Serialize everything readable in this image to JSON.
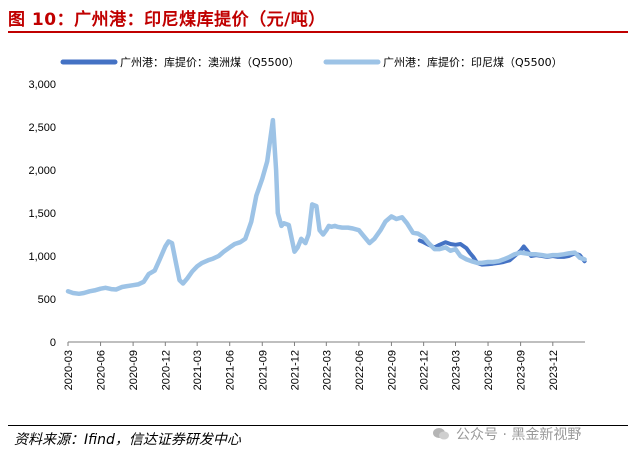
{
  "figure_title": "图 10：广州港：印尼煤库提价（元/吨）",
  "source": "资料来源：Ifind，信达证券研发中心",
  "watermark": "公众号 · 黑金新视野",
  "colors": {
    "title": "#c00000",
    "australia": "#4472c4",
    "indonesia": "#9dc3e6"
  },
  "chart_data": {
    "type": "line",
    "title": "",
    "xlabel": "",
    "ylabel": "",
    "ylim": [
      0,
      3000
    ],
    "yticks": [
      0,
      500,
      1000,
      1500,
      2000,
      2500,
      3000
    ],
    "ytick_labels": [
      "0",
      "500",
      "1,000",
      "1,500",
      "2,000",
      "2,500",
      "3,000"
    ],
    "xlim": [
      "2020-03",
      "2024-03"
    ],
    "xticks": [
      "2020-03",
      "2020-06",
      "2020-09",
      "2020-12",
      "2021-03",
      "2021-06",
      "2021-09",
      "2021-12",
      "2022-03",
      "2022-06",
      "2022-09",
      "2022-12",
      "2023-03",
      "2023-06",
      "2023-09",
      "2023-12"
    ],
    "grid": false,
    "legend_position": "top",
    "series": [
      {
        "name": "广州港：库提价：澳洲煤（Q5500）",
        "color": "#4472c4",
        "x": [
          "2022-11-20",
          "2022-12-01",
          "2022-12-15",
          "2023-01-01",
          "2023-01-15",
          "2023-02-01",
          "2023-02-15",
          "2023-03-01",
          "2023-03-15",
          "2023-04-01",
          "2023-04-10",
          "2023-04-20",
          "2023-05-01",
          "2023-05-15",
          "2023-06-01",
          "2023-06-15",
          "2023-07-01",
          "2023-07-15",
          "2023-08-01",
          "2023-08-15",
          "2023-09-01",
          "2023-09-10",
          "2023-09-20",
          "2023-10-01",
          "2023-10-15",
          "2023-11-01",
          "2023-11-15",
          "2023-12-01",
          "2023-12-15",
          "2024-01-01",
          "2024-01-15",
          "2024-02-01",
          "2024-02-15",
          "2024-02-29"
        ],
        "y": [
          1180,
          1160,
          1130,
          1100,
          1130,
          1160,
          1140,
          1130,
          1140,
          1090,
          1040,
          990,
          920,
          900,
          905,
          910,
          920,
          930,
          950,
          1000,
          1060,
          1110,
          1060,
          1000,
          1010,
          1000,
          990,
          1000,
          990,
          990,
          1000,
          1030,
          1010,
          940
        ]
      },
      {
        "name": "广州港：库提价：印尼煤（Q5500）",
        "color": "#9dc3e6",
        "x": [
          "2020-03-01",
          "2020-03-15",
          "2020-04-01",
          "2020-04-15",
          "2020-05-01",
          "2020-05-15",
          "2020-06-01",
          "2020-06-15",
          "2020-07-01",
          "2020-07-15",
          "2020-08-01",
          "2020-08-15",
          "2020-09-01",
          "2020-09-15",
          "2020-10-01",
          "2020-10-15",
          "2020-11-01",
          "2020-11-15",
          "2020-12-01",
          "2020-12-10",
          "2020-12-20",
          "2021-01-01",
          "2021-01-10",
          "2021-01-20",
          "2021-02-01",
          "2021-02-15",
          "2021-03-01",
          "2021-03-15",
          "2021-04-01",
          "2021-04-15",
          "2021-05-01",
          "2021-05-15",
          "2021-06-01",
          "2021-06-15",
          "2021-07-01",
          "2021-07-15",
          "2021-08-01",
          "2021-08-15",
          "2021-09-01",
          "2021-09-15",
          "2021-10-01",
          "2021-10-10",
          "2021-10-15",
          "2021-10-25",
          "2021-11-01",
          "2021-11-15",
          "2021-12-01",
          "2021-12-10",
          "2021-12-20",
          "2022-01-01",
          "2022-01-10",
          "2022-01-20",
          "2022-02-01",
          "2022-02-10",
          "2022-02-20",
          "2022-03-01",
          "2022-03-08",
          "2022-03-15",
          "2022-03-25",
          "2022-04-01",
          "2022-04-15",
          "2022-05-01",
          "2022-05-15",
          "2022-06-01",
          "2022-06-15",
          "2022-07-01",
          "2022-07-15",
          "2022-08-01",
          "2022-08-15",
          "2022-09-01",
          "2022-09-15",
          "2022-10-01",
          "2022-10-15",
          "2022-11-01",
          "2022-11-15",
          "2022-12-01",
          "2022-12-15",
          "2023-01-01",
          "2023-01-15",
          "2023-02-01",
          "2023-02-15",
          "2023-03-01",
          "2023-03-15",
          "2023-04-01",
          "2023-04-15",
          "2023-05-01",
          "2023-05-15",
          "2023-06-01",
          "2023-06-15",
          "2023-07-01",
          "2023-07-15",
          "2023-08-01",
          "2023-08-15",
          "2023-09-01",
          "2023-09-15",
          "2023-10-01",
          "2023-10-15",
          "2023-11-01",
          "2023-11-15",
          "2023-12-01",
          "2023-12-15",
          "2024-01-01",
          "2024-01-15",
          "2024-02-01",
          "2024-02-15",
          "2024-02-29"
        ],
        "y": [
          590,
          570,
          560,
          570,
          590,
          600,
          620,
          630,
          615,
          610,
          640,
          650,
          660,
          670,
          700,
          790,
          830,
          960,
          1110,
          1170,
          1150,
          900,
          720,
          680,
          740,
          820,
          880,
          920,
          950,
          970,
          1000,
          1050,
          1100,
          1140,
          1160,
          1200,
          1400,
          1700,
          1900,
          2100,
          2580,
          2000,
          1500,
          1350,
          1380,
          1360,
          1050,
          1100,
          1200,
          1150,
          1250,
          1600,
          1580,
          1300,
          1250,
          1300,
          1350,
          1340,
          1350,
          1340,
          1330,
          1330,
          1320,
          1300,
          1230,
          1150,
          1200,
          1300,
          1400,
          1460,
          1430,
          1450,
          1380,
          1270,
          1260,
          1220,
          1150,
          1080,
          1080,
          1100,
          1060,
          1080,
          1000,
          960,
          940,
          920,
          920,
          930,
          930,
          940,
          960,
          990,
          1020,
          1040,
          1030,
          1020,
          1020,
          1010,
          1000,
          1010,
          1010,
          1020,
          1030,
          1040,
          980,
          960
        ]
      }
    ]
  }
}
